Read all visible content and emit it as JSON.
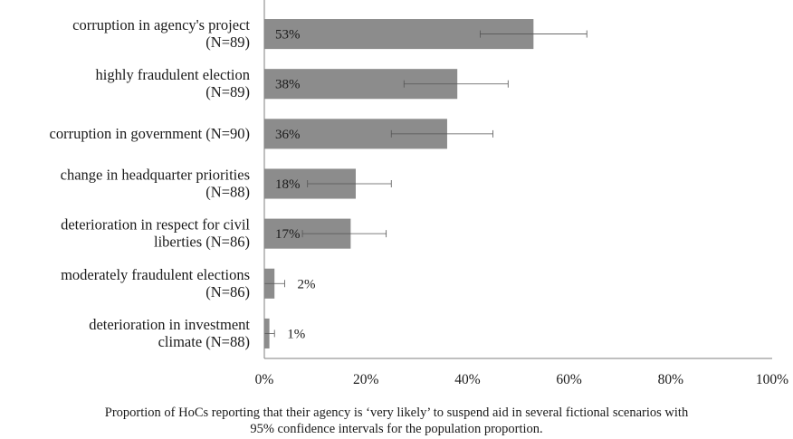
{
  "chart_data": {
    "type": "bar",
    "orientation": "horizontal",
    "categories": [
      [
        "corruption in agency's project",
        "(N=89)"
      ],
      [
        "highly fraudulent election",
        "(N=89)"
      ],
      [
        "corruption in government (N=90)"
      ],
      [
        "change in headquarter priorities",
        "(N=88)"
      ],
      [
        "deterioration in respect for civil",
        "liberties (N=86)"
      ],
      [
        "moderately fraudulent elections",
        "(N=86)"
      ],
      [
        "deterioration in investment",
        "climate (N=88)"
      ]
    ],
    "values": [
      53,
      38,
      36,
      18,
      17,
      2,
      1
    ],
    "value_labels": [
      "53%",
      "38%",
      "36%",
      "18%",
      "17%",
      "2%",
      "1%"
    ],
    "ci_low": [
      42.5,
      27.5,
      25,
      8.5,
      7.5,
      0,
      0
    ],
    "ci_high": [
      63.5,
      48,
      45,
      25,
      24,
      4,
      2
    ],
    "xlim": [
      0,
      100
    ],
    "xticks": [
      "0%",
      "20%",
      "40%",
      "60%",
      "80%",
      "100%"
    ],
    "xlabel": "",
    "ylabel": "",
    "title": "",
    "grid": false,
    "colors": {
      "bar": "#8c8c8c",
      "axis": "#7f7f7f",
      "error_bar": "#555555"
    }
  },
  "caption": {
    "line1": "Proportion of HoCs reporting that their agency is ‘very likely’ to suspend aid in several fictional scenarios with",
    "line2": "95% confidence intervals for the population proportion."
  }
}
